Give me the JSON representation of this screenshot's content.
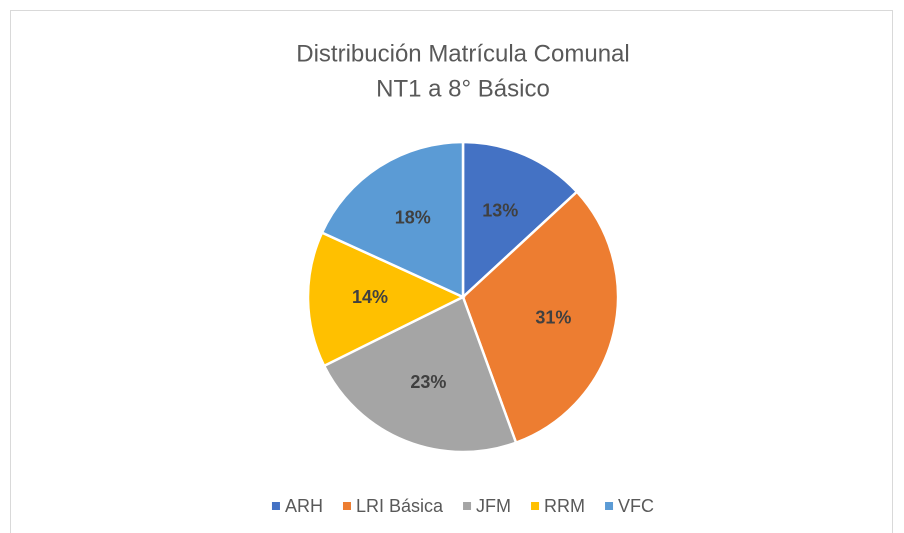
{
  "chart_data": {
    "type": "pie",
    "title": [
      "Distribución Matrícula Comunal",
      "NT1 a 8° Básico"
    ],
    "categories": [
      "ARH",
      "LRI Básica",
      "JFM",
      "RRM",
      "VFC"
    ],
    "values": [
      13,
      31,
      23,
      14,
      18
    ],
    "value_labels": [
      "13%",
      "31%",
      "23%",
      "14%",
      "18%"
    ],
    "colors": [
      "#4472c4",
      "#ed7d31",
      "#a5a5a5",
      "#ffc000",
      "#5b9bd5"
    ],
    "legend": "bottom"
  }
}
